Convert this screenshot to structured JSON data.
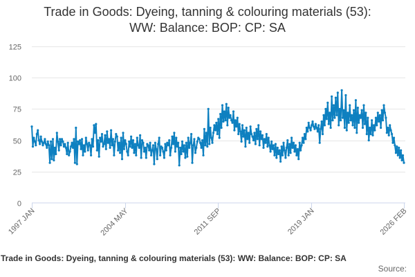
{
  "title_line1": "Trade in Goods: Dyeing, tanning & colouring materials (53):",
  "title_line2": "WW: Balance: BOP: CP: SA",
  "legend_label": "Trade in Goods: Dyeing, tanning & colouring materials (53): WW: Balance: BOP: CP: SA",
  "source_label": "Source:",
  "colors": {
    "series": "#0e80c0",
    "grid": "#e6e6e6",
    "axis": "#ccd6eb"
  },
  "chart_data": {
    "type": "line",
    "title": "Trade in Goods: Dyeing, tanning & colouring materials (53): WW: Balance: BOP: CP: SA",
    "xlabel": "",
    "ylabel": "",
    "ylim": [
      0,
      125
    ],
    "yticks": [
      0,
      25,
      50,
      75,
      100,
      125
    ],
    "xticks": [
      "1997 JAN",
      "2004 MAY",
      "2011 SEP",
      "2019 JAN",
      "2026 FEB"
    ],
    "grid": true,
    "legend_position": "bottom",
    "series": [
      {
        "name": "Trade in Goods: Dyeing, tanning & colouring materials (53): WW: Balance: BOP: CP: SA",
        "x_start": "1997 JAN",
        "frequency": "monthly",
        "values": [
          61,
          45,
          52,
          49,
          46,
          55,
          58,
          50,
          47,
          53,
          49,
          46,
          48,
          51,
          47,
          44,
          49,
          46,
          32,
          49,
          35,
          51,
          34,
          44,
          39,
          56,
          49,
          42,
          51,
          46,
          51,
          49,
          45,
          47,
          44,
          39,
          48,
          38,
          41,
          45,
          48,
          44,
          51,
          32,
          60,
          31,
          49,
          47,
          50,
          43,
          51,
          38,
          46,
          41,
          52,
          47,
          42,
          48,
          46,
          38,
          51,
          45,
          62,
          56,
          63,
          42,
          50,
          37,
          52,
          49,
          55,
          45,
          47,
          54,
          43,
          57,
          48,
          51,
          44,
          58,
          46,
          51,
          38,
          49,
          55,
          53,
          42,
          48,
          40,
          52,
          35,
          56,
          43,
          50,
          47,
          41,
          38,
          49,
          45,
          53,
          44,
          50,
          40,
          47,
          38,
          52,
          46,
          44,
          54,
          36,
          50,
          48,
          41,
          44,
          36,
          47,
          46,
          42,
          48,
          38,
          42,
          46,
          31,
          48,
          43,
          35,
          47,
          52,
          38,
          45,
          44,
          41,
          36,
          47,
          42,
          48,
          46,
          50,
          38,
          44,
          53,
          47,
          56,
          41,
          52,
          45,
          48,
          30,
          44,
          39,
          49,
          41,
          46,
          36,
          48,
          37,
          52,
          44,
          48,
          55,
          32,
          46,
          51,
          40,
          44,
          49,
          52,
          51,
          48,
          44,
          50,
          38,
          59,
          46,
          56,
          45,
          75,
          47,
          60,
          52,
          48,
          56,
          62,
          58,
          64,
          55,
          67,
          52,
          71,
          60,
          78,
          65,
          73,
          66,
          79,
          62,
          76,
          68,
          70,
          66,
          64,
          73,
          58,
          66,
          61,
          68,
          55,
          63,
          57,
          49,
          62,
          53,
          58,
          45,
          60,
          51,
          56,
          48,
          61,
          55,
          53,
          50,
          56,
          47,
          59,
          51,
          62,
          46,
          57,
          51,
          54,
          44,
          51,
          48,
          55,
          45,
          52,
          46,
          41,
          49,
          43,
          46,
          38,
          47,
          36,
          44,
          39,
          42,
          33,
          45,
          38,
          48,
          42,
          36,
          44,
          50,
          38,
          47,
          40,
          52,
          44,
          48,
          41,
          46,
          38,
          43,
          35,
          48,
          42,
          46,
          52,
          48,
          55,
          51,
          60,
          57,
          64,
          60,
          58,
          62,
          65,
          61,
          59,
          63,
          60,
          57,
          62,
          48,
          59,
          65,
          55,
          70,
          62,
          75,
          67,
          80,
          63,
          72,
          60,
          85,
          66,
          78,
          68,
          84,
          70,
          88,
          62,
          75,
          66,
          90,
          68,
          74,
          60,
          86,
          58,
          72,
          64,
          78,
          66,
          70,
          62,
          74,
          60,
          82,
          56,
          76,
          64,
          70,
          68,
          74,
          60,
          78,
          63,
          72,
          55,
          68,
          50,
          60,
          55,
          66,
          54,
          62,
          58,
          68,
          62,
          72,
          65,
          70,
          60,
          74,
          66,
          78,
          72,
          68,
          56,
          60,
          54,
          62,
          58,
          55,
          48,
          52,
          46,
          40,
          45,
          38,
          44,
          36,
          42,
          34,
          38,
          32
        ]
      }
    ]
  }
}
